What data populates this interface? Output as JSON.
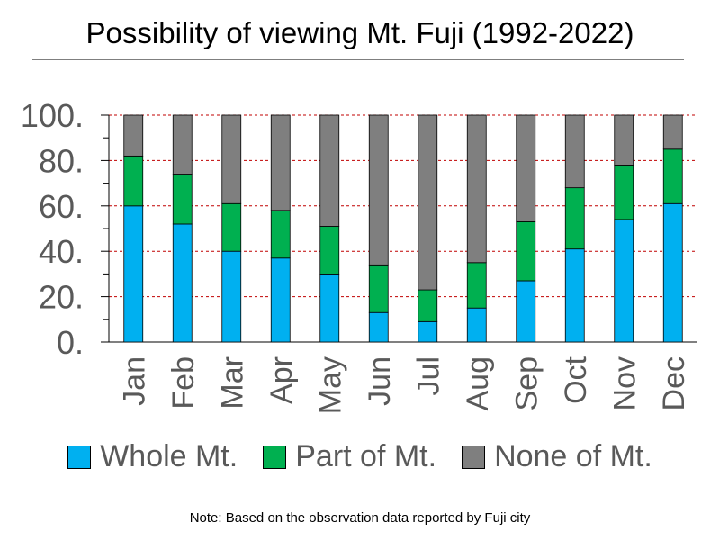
{
  "chart_data": {
    "type": "bar",
    "stacked": true,
    "title": "Possibility of viewing Mt. Fuji (1992-2022)",
    "categories": [
      "Jan",
      "Feb",
      "Mar",
      "Apr",
      "May",
      "Jun",
      "Jul",
      "Aug",
      "Sep",
      "Oct",
      "Nov",
      "Dec"
    ],
    "series": [
      {
        "name": "Whole Mt.",
        "color": "#00b0f0",
        "values": [
          60,
          52,
          40,
          37,
          30,
          13,
          9,
          15,
          27,
          41,
          54,
          61
        ]
      },
      {
        "name": "Part of Mt.",
        "color": "#00b050",
        "values": [
          22,
          22,
          21,
          21,
          21,
          21,
          14,
          20,
          26,
          27,
          24,
          24
        ]
      },
      {
        "name": "None of Mt.",
        "color": "#7f7f7f",
        "values": [
          18,
          26,
          39,
          42,
          49,
          66,
          77,
          65,
          47,
          32,
          22,
          15
        ]
      }
    ],
    "ylim": [
      0,
      100
    ],
    "yticks": [
      "0.",
      "20.",
      "40.",
      "60.",
      "80.",
      "100."
    ],
    "grid": true,
    "legend_position": "bottom"
  },
  "footnote": "Note: Based on the observation data reported by Fuji city"
}
